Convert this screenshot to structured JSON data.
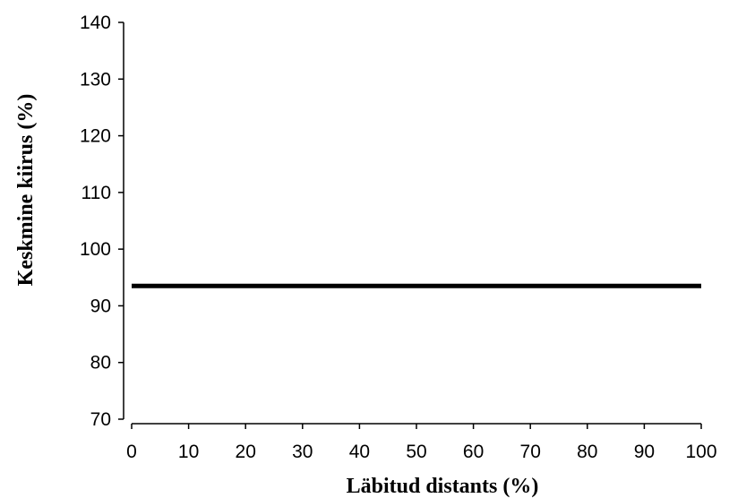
{
  "chart_data": {
    "type": "line",
    "title": "",
    "xlabel": "Läbitud distants (%)",
    "ylabel": "Keskmine kiirus (%)",
    "xlim": [
      0,
      100
    ],
    "ylim": [
      70,
      140
    ],
    "x_ticks": [
      0,
      10,
      20,
      30,
      40,
      50,
      60,
      70,
      80,
      90,
      100
    ],
    "y_ticks": [
      70,
      80,
      90,
      100,
      110,
      120,
      130,
      140
    ],
    "grid": false,
    "legend": "none",
    "series": [
      {
        "x": [
          0,
          100
        ],
        "y": [
          93.5,
          93.5
        ],
        "color": "#000000"
      }
    ]
  }
}
